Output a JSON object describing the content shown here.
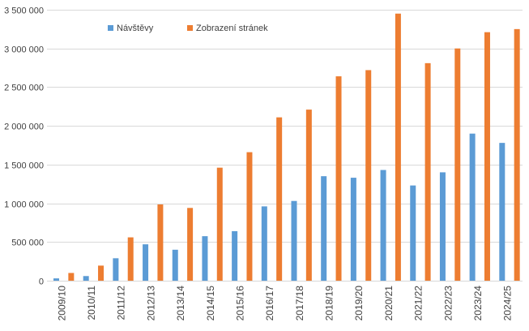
{
  "chart_data": {
    "type": "bar",
    "title": "",
    "xlabel": "",
    "ylabel": "",
    "categories": [
      "2009/10",
      "2010/11",
      "2011/12",
      "2012/13",
      "2013/14",
      "2014/15",
      "2015/16",
      "2016/17",
      "2017/18",
      "2018/19",
      "2019/20",
      "2020/21",
      "2021/22",
      "2022/23",
      "2023/24",
      "2024/25"
    ],
    "series": [
      {
        "name": "Návštěvy",
        "color": "#5b9bd5",
        "values": [
          30000,
          60000,
          290000,
          470000,
          400000,
          575000,
          640000,
          960000,
          1030000,
          1350000,
          1330000,
          1430000,
          1230000,
          1400000,
          1900000,
          1780000
        ]
      },
      {
        "name": "Zobrazení stránek",
        "color": "#ed7d31",
        "values": [
          100000,
          195000,
          560000,
          985000,
          940000,
          1460000,
          1660000,
          2110000,
          2210000,
          2640000,
          2720000,
          3450000,
          2810000,
          3000000,
          3210000,
          3250000
        ]
      }
    ],
    "ylim": [
      0,
      3500000
    ],
    "yticks": [
      0,
      500000,
      1000000,
      1500000,
      2000000,
      2500000,
      3000000,
      3500000
    ],
    "ytick_labels": [
      "0",
      "500 000",
      "1 000 000",
      "1 500 000",
      "2 000 000",
      "2 500 000",
      "3 000 000",
      "3 500 000"
    ],
    "grid": true,
    "legend_position": "top-left"
  }
}
